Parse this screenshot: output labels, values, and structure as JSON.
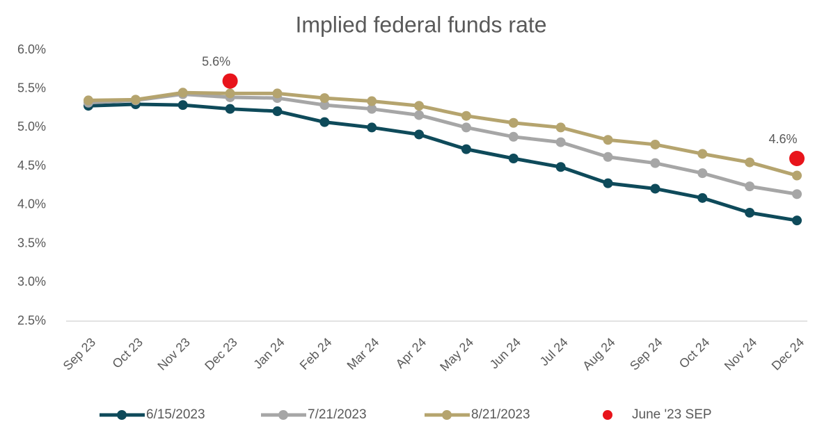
{
  "chart_data": {
    "type": "line",
    "title": "Implied federal funds rate",
    "categories": [
      "Sep 23",
      "Oct 23",
      "Nov 23",
      "Dec 23",
      "Jan 24",
      "Feb 24",
      "Mar 24",
      "Apr 24",
      "May 24",
      "Jun 24",
      "Jul 24",
      "Aug 24",
      "Sep 24",
      "Oct 24",
      "Nov 24",
      "Dec 24"
    ],
    "series": [
      {
        "name": "6/15/2023",
        "color": "#0e4a5a",
        "values": [
          5.28,
          5.3,
          5.29,
          5.24,
          5.21,
          5.07,
          5.0,
          4.91,
          4.72,
          4.6,
          4.49,
          4.28,
          4.21,
          4.09,
          3.9,
          3.8
        ]
      },
      {
        "name": "7/21/2023",
        "color": "#a6a6a6",
        "values": [
          5.32,
          5.35,
          5.43,
          5.39,
          5.38,
          5.29,
          5.24,
          5.16,
          5.0,
          4.88,
          4.81,
          4.62,
          4.54,
          4.41,
          4.24,
          4.14
        ]
      },
      {
        "name": "8/21/2023",
        "color": "#b5a46e",
        "values": [
          5.35,
          5.36,
          5.45,
          5.44,
          5.44,
          5.38,
          5.34,
          5.28,
          5.15,
          5.06,
          5.0,
          4.84,
          4.78,
          4.66,
          4.55,
          4.38
        ]
      },
      {
        "name": "June '23 SEP",
        "color": "#e8141b",
        "style": "markers",
        "values": [
          null,
          null,
          null,
          5.6,
          null,
          null,
          null,
          null,
          null,
          null,
          null,
          null,
          null,
          null,
          null,
          4.6
        ],
        "value_labels": [
          null,
          null,
          null,
          "5.6%",
          null,
          null,
          null,
          null,
          null,
          null,
          null,
          null,
          null,
          null,
          null,
          "4.6%"
        ]
      }
    ],
    "ylim": [
      2.5,
      6.0
    ],
    "yticks": [
      {
        "value": 2.5,
        "label": "2.5%"
      },
      {
        "value": 3.0,
        "label": "3.0%"
      },
      {
        "value": 3.5,
        "label": "3.5%"
      },
      {
        "value": 4.0,
        "label": "4.0%"
      },
      {
        "value": 4.5,
        "label": "4.5%"
      },
      {
        "value": 5.0,
        "label": "5.0%"
      },
      {
        "value": 5.5,
        "label": "5.5%"
      },
      {
        "value": 6.0,
        "label": "6.0%"
      }
    ],
    "grid": false,
    "legend": "bottom"
  }
}
